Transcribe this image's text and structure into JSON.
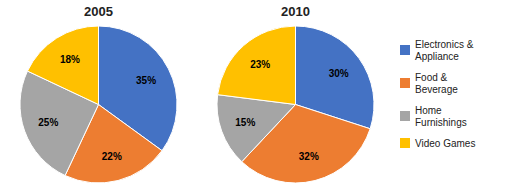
{
  "chart_data": [
    {
      "type": "pie",
      "title": "2005",
      "categories": [
        "Electronics &\nAppliance",
        "Food &\nBeverage",
        "Home\nFurnishings",
        "Video Games"
      ],
      "values": [
        35,
        22,
        25,
        18
      ],
      "value_labels": [
        "35%",
        "22%",
        "25%",
        "18%"
      ],
      "colors": [
        "#4472C4",
        "#ED7D31",
        "#A5A5A5",
        "#FFC000"
      ],
      "data_labels": true,
      "legend": "right"
    },
    {
      "type": "pie",
      "title": "2010",
      "categories": [
        "Electronics &\nAppliance",
        "Food &\nBeverage",
        "Home\nFurnishings",
        "Video Games"
      ],
      "values": [
        30,
        32,
        15,
        23
      ],
      "value_labels": [
        "30%",
        "32%",
        "15%",
        "23%"
      ],
      "colors": [
        "#4472C4",
        "#ED7D31",
        "#A5A5A5",
        "#FFC000"
      ],
      "data_labels": true
    }
  ]
}
